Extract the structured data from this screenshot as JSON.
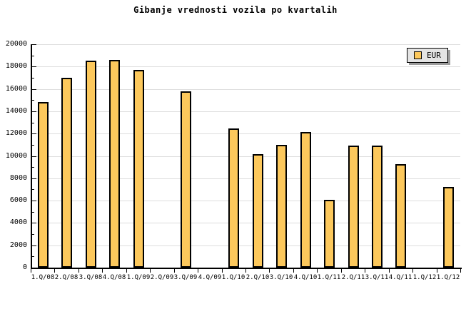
{
  "title": "Gibanje vrednosti vozila po kvartalih",
  "legend": {
    "label": "EUR"
  },
  "chart_data": {
    "type": "bar",
    "title": "Gibanje vrednosti vozila po kvartalih",
    "categories": [
      "1.Q/08",
      "2.Q/08",
      "3.Q/08",
      "4.Q/08",
      "1.Q/09",
      "2.Q/09",
      "3.Q/09",
      "4.Q/09",
      "1.Q/10",
      "2.Q/10",
      "3.Q/10",
      "4.Q/10",
      "1.Q/11",
      "2.Q/11",
      "3.Q/11",
      "4.Q/11",
      "1.Q/12",
      "1.Q/12"
    ],
    "series": [
      {
        "name": "EUR",
        "values": [
          14800,
          17000,
          18500,
          18600,
          17700,
          null,
          15800,
          null,
          12450,
          10150,
          11000,
          12150,
          6100,
          10900,
          10900,
          9250,
          null,
          7250
        ]
      }
    ],
    "xlabel": "",
    "ylabel": "",
    "ylim": [
      0,
      20000
    ],
    "ytick_step": 2000,
    "ytick_minor_step": 1000,
    "yticks": [
      0,
      2000,
      4000,
      6000,
      8000,
      10000,
      12000,
      14000,
      16000,
      18000,
      20000
    ],
    "grid": "horizontal-major",
    "legend_position": "top-right",
    "colors": {
      "bar_fill": "#FCC85C",
      "bar_border": "#000000",
      "grid": "#DDDDDD",
      "axis": "#000000",
      "legend_bg": "#E4E4E4",
      "legend_shadow": "#9C9C9C",
      "background": "#FFFFFF"
    }
  }
}
